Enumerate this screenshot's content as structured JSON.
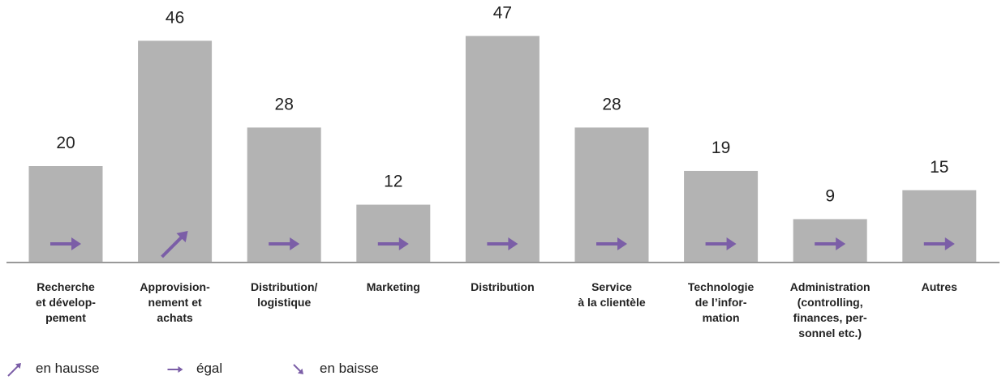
{
  "chart_data": {
    "type": "bar",
    "categories": [
      "Recherche\net dévelop-\npement",
      "Approvision-\nnement et\nachats",
      "Distribution/\nlogistique",
      "Marketing",
      "Distribution",
      "Service\nà la clientèle",
      "Technologie\nde l’infor-\nmation",
      "Administration\n(controlling,\nfinances, per-\nsonnel etc.)",
      "Autres"
    ],
    "values": [
      20,
      46,
      28,
      12,
      47,
      28,
      19,
      9,
      15
    ],
    "color": "#b3b3b3",
    "trend_color": "#7b5ea7",
    "trends": [
      1,
      0,
      1,
      1,
      1,
      1,
      1,
      1,
      1
    ],
    "legend": [
      {
        "label": "en hausse"
      },
      {
        "label": "égal"
      },
      {
        "label": "en baisse"
      }
    ]
  }
}
